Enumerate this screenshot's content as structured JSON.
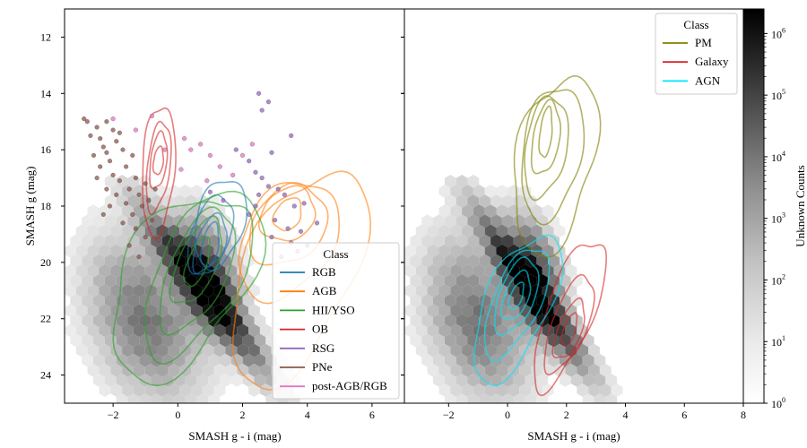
{
  "chart_data": [
    {
      "type": "scatter",
      "panel": "left",
      "xlabel": "SMASH g - i (mag)",
      "ylabel": "SMASH g (mag)",
      "xlim": [
        -3.5,
        7.0
      ],
      "ylim": [
        25.0,
        11.0
      ],
      "y_inverted": true,
      "xticks": [
        -2,
        0,
        2,
        4,
        6
      ],
      "yticks": [
        12,
        14,
        16,
        18,
        20,
        22,
        24
      ],
      "background": "hexbin density of unclassified sources (grayscale, log scale)",
      "legend": {
        "title": "Class",
        "position": "lower-right",
        "entries": [
          "RGB",
          "AGB",
          "HII/YSO",
          "OB",
          "RSG",
          "PNe",
          "post-AGB/RGB"
        ]
      },
      "series": [
        {
          "name": "RGB",
          "color": "#1f77b4",
          "style": "kde-contours",
          "center": [
            1.0,
            19.4
          ]
        },
        {
          "name": "AGB",
          "color": "#ff7f0e",
          "style": "kde-contours",
          "center": [
            3.4,
            18.3
          ]
        },
        {
          "name": "HII/YSO",
          "color": "#2ca02c",
          "style": "kde-contours",
          "center": [
            0.6,
            20.0
          ]
        },
        {
          "name": "OB",
          "color": "#d62728",
          "style": "kde-contours",
          "center": [
            -0.6,
            16.4
          ]
        },
        {
          "name": "RSG",
          "color": "#9467bd",
          "style": "points",
          "points": [
            [
              2.5,
              14.0
            ],
            [
              2.8,
              14.3
            ],
            [
              2.6,
              14.6
            ],
            [
              3.5,
              15.5
            ],
            [
              2.2,
              16.4
            ],
            [
              2.4,
              16.8
            ],
            [
              2.6,
              17.0
            ],
            [
              2.8,
              17.3
            ],
            [
              2.5,
              17.6
            ],
            [
              3.1,
              17.4
            ],
            [
              3.3,
              17.6
            ],
            [
              2.4,
              18.0
            ],
            [
              3.6,
              18.0
            ],
            [
              3.0,
              18.5
            ],
            [
              3.4,
              18.8
            ],
            [
              3.8,
              18.9
            ],
            [
              2.9,
              19.1
            ],
            [
              3.5,
              19.3
            ],
            [
              4.0,
              19.4
            ],
            [
              3.7,
              19.6
            ],
            [
              1.0,
              17.5
            ],
            [
              1.4,
              17.8
            ],
            [
              2.9,
              16.1
            ],
            [
              3.9,
              17.9
            ],
            [
              4.3,
              18.6
            ],
            [
              2.2,
              18.3
            ],
            [
              3.2,
              19.8
            ],
            [
              1.8,
              16.0
            ]
          ]
        },
        {
          "name": "PNe",
          "color": "#8c564b",
          "style": "points",
          "points": [
            [
              -2.8,
              15.0
            ],
            [
              -2.5,
              15.2
            ],
            [
              -2.4,
              15.6
            ],
            [
              -2.2,
              15.0
            ],
            [
              -2.0,
              15.3
            ],
            [
              -2.3,
              15.9
            ],
            [
              -2.6,
              16.2
            ],
            [
              -2.1,
              16.4
            ],
            [
              -1.9,
              15.7
            ],
            [
              -1.7,
              16.0
            ],
            [
              -2.4,
              16.6
            ],
            [
              -2.0,
              16.9
            ],
            [
              -1.8,
              17.1
            ],
            [
              -2.5,
              17.0
            ],
            [
              -1.6,
              16.6
            ],
            [
              -1.5,
              17.4
            ],
            [
              -1.3,
              17.0
            ],
            [
              -2.2,
              17.4
            ],
            [
              -1.9,
              17.6
            ],
            [
              -1.6,
              17.9
            ],
            [
              -1.2,
              17.6
            ],
            [
              -1.0,
              17.2
            ],
            [
              -2.1,
              18.0
            ],
            [
              -1.4,
              18.3
            ],
            [
              -2.3,
              18.3
            ],
            [
              -1.7,
              18.6
            ],
            [
              -1.1,
              18.0
            ],
            [
              -0.9,
              17.8
            ],
            [
              -1.3,
              18.8
            ],
            [
              -1.0,
              19.1
            ],
            [
              -0.8,
              18.5
            ],
            [
              -1.5,
              19.4
            ],
            [
              -1.2,
              19.8
            ],
            [
              -0.6,
              19.2
            ],
            [
              -2.7,
              15.5
            ],
            [
              -2.9,
              14.9
            ],
            [
              -1.8,
              15.4
            ],
            [
              -2.2,
              16.1
            ],
            [
              -1.4,
              16.2
            ],
            [
              -0.7,
              17.4
            ]
          ]
        },
        {
          "name": "post-AGB/RGB",
          "color": "#e377c2",
          "style": "points",
          "points": [
            [
              -2.0,
              14.9
            ],
            [
              -1.3,
              15.3
            ],
            [
              -0.8,
              14.8
            ],
            [
              0.2,
              15.6
            ],
            [
              0.4,
              16.0
            ],
            [
              0.7,
              15.8
            ],
            [
              1.0,
              16.2
            ],
            [
              1.3,
              16.6
            ],
            [
              1.7,
              16.9
            ],
            [
              2.0,
              16.2
            ],
            [
              0.1,
              16.7
            ],
            [
              -0.4,
              16.0
            ],
            [
              0.9,
              17.1
            ],
            [
              2.3,
              15.8
            ]
          ]
        }
      ]
    },
    {
      "type": "scatter",
      "panel": "right",
      "xlabel": "SMASH g - i (mag)",
      "xlim": [
        -3.5,
        8.0
      ],
      "ylim": [
        25.0,
        11.0
      ],
      "xticks": [
        -2,
        0,
        2,
        4,
        6,
        8
      ],
      "background": "hexbin density of unclassified sources (grayscale, log scale)",
      "legend": {
        "title": "Class",
        "position": "top-right",
        "entries": [
          "PM",
          "Galaxy",
          "AGN"
        ]
      },
      "series": [
        {
          "name": "PM",
          "color": "#808000",
          "style": "kde-contours",
          "center": [
            1.3,
            15.4
          ]
        },
        {
          "name": "Galaxy",
          "color": "#d62728",
          "style": "kde-contours",
          "center": [
            2.1,
            22.4
          ]
        },
        {
          "name": "AGN",
          "color": "#00e5ff",
          "style": "kde-contours",
          "center": [
            0.3,
            21.2
          ]
        }
      ]
    }
  ],
  "colorbar": {
    "label": "Unknown Counts",
    "scale": "log",
    "range": [
      1,
      2500000
    ],
    "ticks": [
      {
        "value": 1,
        "label": "10",
        "exp": "0"
      },
      {
        "value": 10,
        "label": "10",
        "exp": "1"
      },
      {
        "value": 100,
        "label": "10",
        "exp": "2"
      },
      {
        "value": 1000,
        "label": "10",
        "exp": "3"
      },
      {
        "value": 10000,
        "label": "10",
        "exp": "4"
      },
      {
        "value": 100000,
        "label": "10",
        "exp": "5"
      },
      {
        "value": 1000000,
        "label": "10",
        "exp": "6"
      }
    ]
  },
  "colors": {
    "RGB": "#1f77b4",
    "AGB": "#ff7f0e",
    "HII/YSO": "#2ca02c",
    "OB": "#d62728",
    "RSG": "#9467bd",
    "PNe": "#8c564b",
    "post-AGB/RGB": "#e377c2",
    "PM": "#808000",
    "Galaxy": "#d62728",
    "AGN": "#00e5ff"
  }
}
